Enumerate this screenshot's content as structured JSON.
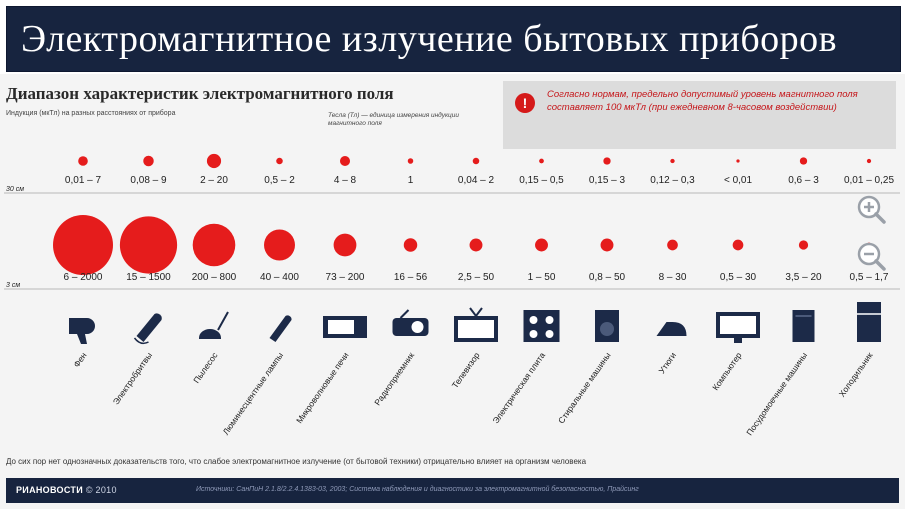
{
  "title": "Электромагнитное излучение бытовых приборов",
  "subtitle": "Диапазон характеристик электромагнитного поля",
  "caption": "Индукция (мкТл) на разных расстояниях от прибора",
  "unit_note": "Тесла (Тл) — единица измерения индукции магнитного поля",
  "norm_text": "Согласно нормам, предельно допустимый уровень магнитного поля составляет 100 мкТл (при ежедневном 8-часовом воздействии)",
  "norm_icon": "!",
  "footer_note": "До сих пор нет однозначных доказательств того, что слабое электромагнитное излучение (от бытовой техники) отрицательно влияет на организм человека",
  "footer": {
    "logo": "РИАНОВОСТИ",
    "year": "© 2010",
    "source": "Источники: СанПиН 2.1.8/2.2.4.1383-03, 2003; Система наблюдения и диагностики за электромагнитной безопасностью, Прайсинг"
  },
  "colors": {
    "dot": "#e51c1c",
    "header_bg": "#17243f",
    "norm_text": "#c5161a"
  },
  "chart_data": {
    "type": "scatter",
    "row_labels": [
      "30 см",
      "3 см"
    ],
    "categories": [
      "Фен",
      "Электробритвы",
      "Пылесос",
      "Люминесцентные лампы",
      "Микроволновые печи",
      "Радиоприемник",
      "Телевизор",
      "Электрическая плита",
      "Стиральные машины",
      "Утюги",
      "Компьютер",
      "Посудомоечные машины",
      "Холодильник"
    ],
    "series": [
      {
        "name": "30 см",
        "ranges": [
          "0,01 – 7",
          "0,08 – 9",
          "2 – 20",
          "0,5 – 2",
          "4 – 8",
          "1",
          "0,04 – 2",
          "0,15 – 0,5",
          "0,15 – 3",
          "0,12 – 0,3",
          "< 0,01",
          "0,6 – 3",
          "0,01 – 0,25"
        ],
        "max": [
          7,
          9,
          20,
          2,
          8,
          1,
          2,
          0.5,
          3,
          0.3,
          0.01,
          3,
          0.25
        ]
      },
      {
        "name": "3 см",
        "ranges": [
          "6 – 2000",
          "15 – 1500",
          "200 – 800",
          "40 – 400",
          "73 – 200",
          "16 – 56",
          "2,5 – 50",
          "1 – 50",
          "0,8 – 50",
          "8 – 30",
          "0,5 – 30",
          "3,5 – 20",
          "0,5 – 1,7"
        ],
        "max": [
          2000,
          1500,
          800,
          400,
          200,
          56,
          50,
          50,
          50,
          30,
          30,
          20,
          1.7
        ]
      }
    ],
    "appliance_icons": [
      "hair-dryer-icon",
      "electric-shaver-icon",
      "vacuum-cleaner-icon",
      "fluorescent-lamp-icon",
      "microwave-icon",
      "radio-icon",
      "tv-icon",
      "electric-stove-icon",
      "washing-machine-icon",
      "iron-icon",
      "computer-icon",
      "dishwasher-icon",
      "refrigerator-icon"
    ]
  }
}
